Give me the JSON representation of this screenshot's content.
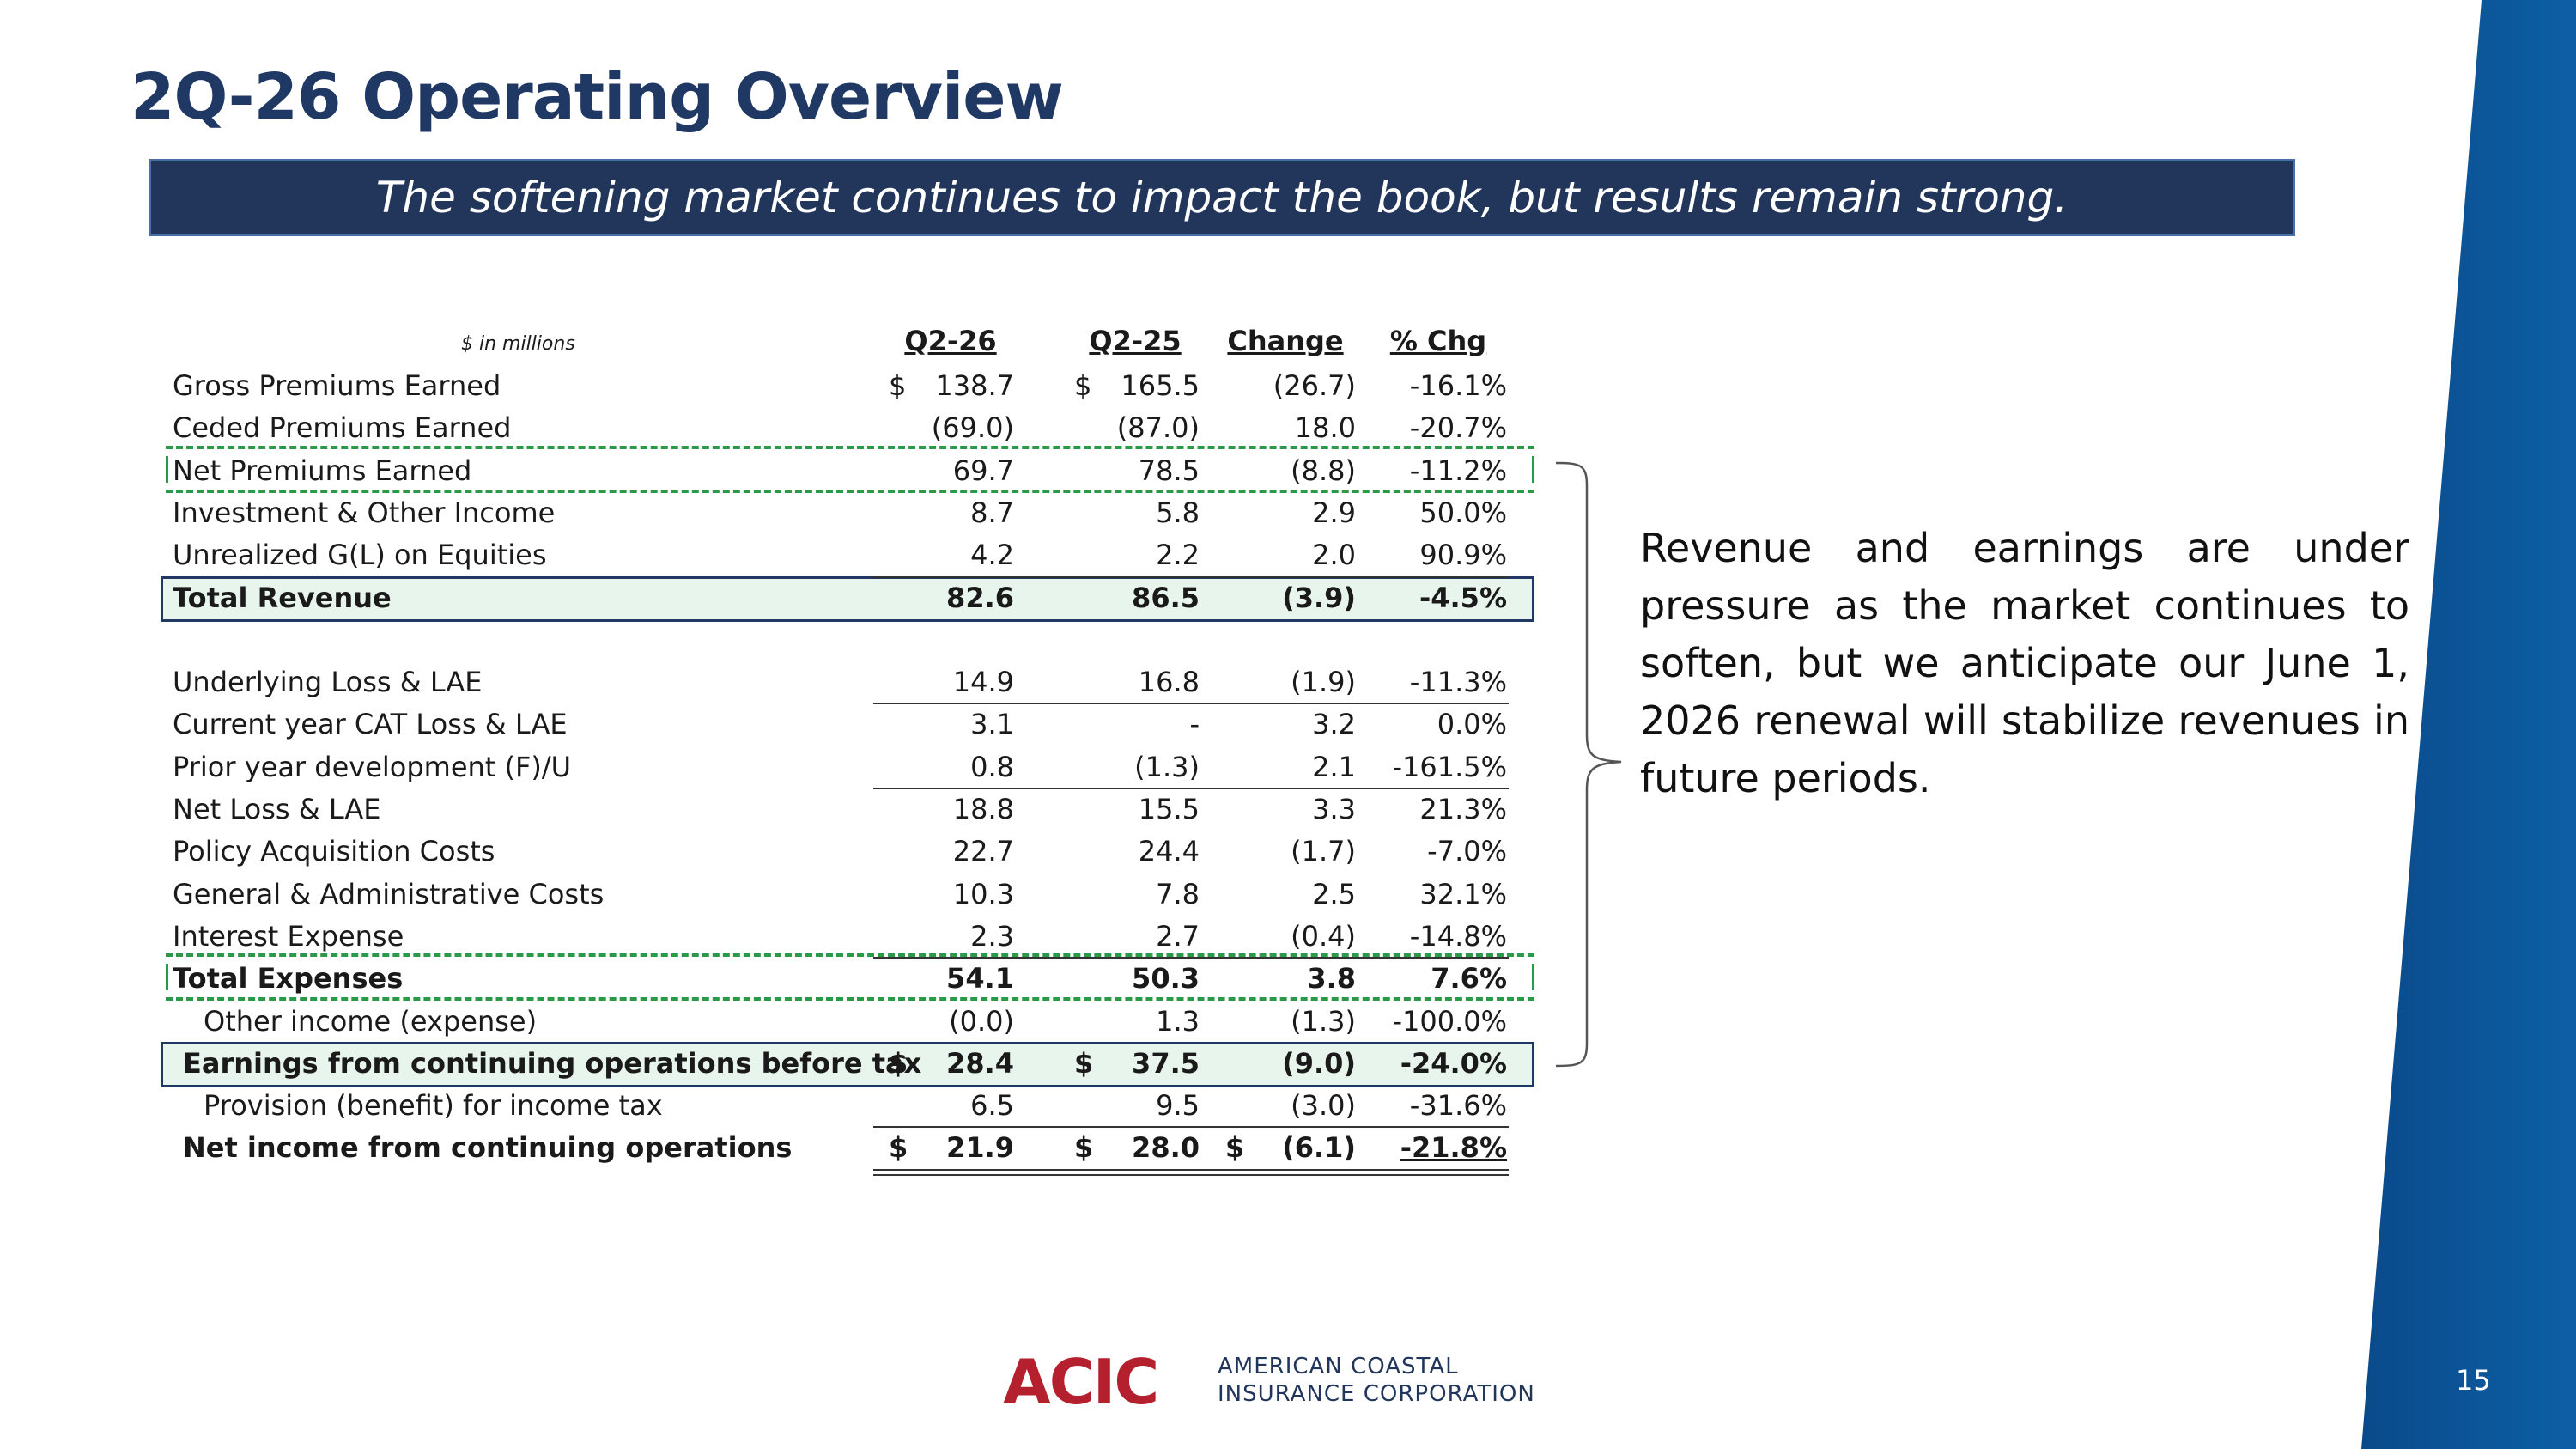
{
  "slide": {
    "title": "2Q-26 Operating Overview",
    "subtitle": "The softening market continues to impact the book, but results remain strong.",
    "page_number": "15"
  },
  "table": {
    "units_label": "$ in millions",
    "headers": [
      "Q2-26",
      "Q2-25",
      "Change",
      "% Chg"
    ],
    "rows": [
      {
        "label": "Gross Premiums Earned",
        "cur1": "$",
        "q2_26": "138.7",
        "cur2": "$",
        "q2_25": "165.5",
        "cur3": "",
        "change": "(26.7)",
        "pct": "-16.1%"
      },
      {
        "label": "Ceded Premiums Earned",
        "cur1": "",
        "q2_26": "(69.0)",
        "cur2": "",
        "q2_25": "(87.0)",
        "cur3": "",
        "change": "18.0",
        "pct": "-20.7%"
      },
      {
        "label": "Net Premiums Earned",
        "cur1": "",
        "q2_26": "69.7",
        "cur2": "",
        "q2_25": "78.5",
        "cur3": "",
        "change": "(8.8)",
        "pct": "-11.2%"
      },
      {
        "label": "Investment & Other Income",
        "cur1": "",
        "q2_26": "8.7",
        "cur2": "",
        "q2_25": "5.8",
        "cur3": "",
        "change": "2.9",
        "pct": "50.0%"
      },
      {
        "label": "Unrealized G(L) on Equities",
        "cur1": "",
        "q2_26": "4.2",
        "cur2": "",
        "q2_25": "2.2",
        "cur3": "",
        "change": "2.0",
        "pct": "90.9%"
      },
      {
        "label": "Total Revenue",
        "cur1": "",
        "q2_26": "82.6",
        "cur2": "",
        "q2_25": "86.5",
        "cur3": "",
        "change": "(3.9)",
        "pct": "-4.5%"
      },
      {
        "label": "",
        "cur1": "",
        "q2_26": "",
        "cur2": "",
        "q2_25": "",
        "cur3": "",
        "change": "",
        "pct": ""
      },
      {
        "label": "Underlying Loss & LAE",
        "cur1": "",
        "q2_26": "14.9",
        "cur2": "",
        "q2_25": "16.8",
        "cur3": "",
        "change": "(1.9)",
        "pct": "-11.3%"
      },
      {
        "label": "Current year CAT Loss & LAE",
        "cur1": "",
        "q2_26": "3.1",
        "cur2": "",
        "q2_25": "-",
        "cur3": "",
        "change": "3.2",
        "pct": "0.0%"
      },
      {
        "label": "Prior year development (F)/U",
        "cur1": "",
        "q2_26": "0.8",
        "cur2": "",
        "q2_25": "(1.3)",
        "cur3": "",
        "change": "2.1",
        "pct": "-161.5%"
      },
      {
        "label": "Net Loss & LAE",
        "cur1": "",
        "q2_26": "18.8",
        "cur2": "",
        "q2_25": "15.5",
        "cur3": "",
        "change": "3.3",
        "pct": "21.3%"
      },
      {
        "label": "Policy Acquisition Costs",
        "cur1": "",
        "q2_26": "22.7",
        "cur2": "",
        "q2_25": "24.4",
        "cur3": "",
        "change": "(1.7)",
        "pct": "-7.0%"
      },
      {
        "label": "General & Administrative Costs",
        "cur1": "",
        "q2_26": "10.3",
        "cur2": "",
        "q2_25": "7.8",
        "cur3": "",
        "change": "2.5",
        "pct": "32.1%"
      },
      {
        "label": "Interest Expense",
        "cur1": "",
        "q2_26": "2.3",
        "cur2": "",
        "q2_25": "2.7",
        "cur3": "",
        "change": "(0.4)",
        "pct": "-14.8%"
      },
      {
        "label": "Total Expenses",
        "cur1": "",
        "q2_26": "54.1",
        "cur2": "",
        "q2_25": "50.3",
        "cur3": "",
        "change": "3.8",
        "pct": "7.6%"
      },
      {
        "label": "Other income (expense)",
        "cur1": "",
        "q2_26": "(0.0)",
        "cur2": "",
        "q2_25": "1.3",
        "cur3": "",
        "change": "(1.3)",
        "pct": "-100.0%"
      },
      {
        "label": "Earnings from continuing operations before tax",
        "cur1": "$",
        "q2_26": "28.4",
        "cur2": "$",
        "q2_25": "37.5",
        "cur3": "",
        "change": "(9.0)",
        "pct": "-24.0%"
      },
      {
        "label": "Provision (benefit) for income tax",
        "cur1": "",
        "q2_26": "6.5",
        "cur2": "",
        "q2_25": "9.5",
        "cur3": "",
        "change": "(3.0)",
        "pct": "-31.6%"
      },
      {
        "label": "Net income from continuing operations",
        "cur1": "$",
        "q2_26": "21.9",
        "cur2": "$",
        "q2_25": "28.0",
        "cur3": "$",
        "change": "(6.1)",
        "pct": "-21.8%"
      }
    ]
  },
  "commentary": "Revenue and earnings are under pressure as the market continues to soften, but we anticipate our June 1, 2026 renewal will stabilize revenues in future periods.",
  "footer": {
    "logo_text": "ACIC",
    "company_line1": "AMERICAN COASTAL",
    "company_line2": "INSURANCE CORPORATION"
  },
  "colors": {
    "title": "#1f3864",
    "banner": "#22365c",
    "stripe": "#0b5394",
    "logo_red": "#b5202e",
    "highlight_fill": "#e8f5ec",
    "dash_green": "#2a9a48"
  }
}
